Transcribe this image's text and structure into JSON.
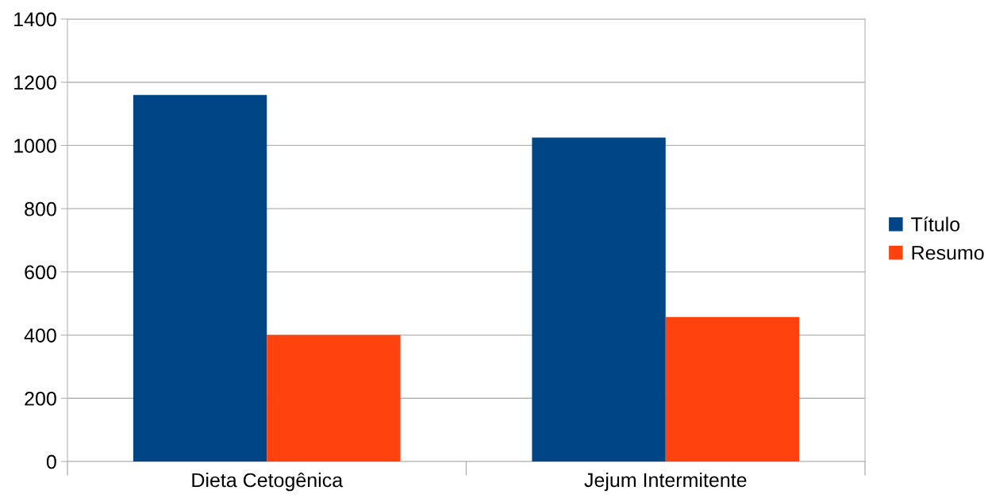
{
  "chart_data": {
    "type": "bar",
    "categories": [
      "Dieta Cetogênica",
      "Jejum Intermitente"
    ],
    "series": [
      {
        "name": "Título",
        "color": "#004586",
        "values": [
          1160,
          1025
        ]
      },
      {
        "name": "Resumo",
        "color": "#ff420e",
        "values": [
          400,
          457
        ]
      }
    ],
    "ylim": [
      0,
      1400
    ],
    "yticks": [
      0,
      200,
      400,
      600,
      800,
      1000,
      1200,
      1400
    ],
    "grid": "y",
    "legend": "right"
  }
}
